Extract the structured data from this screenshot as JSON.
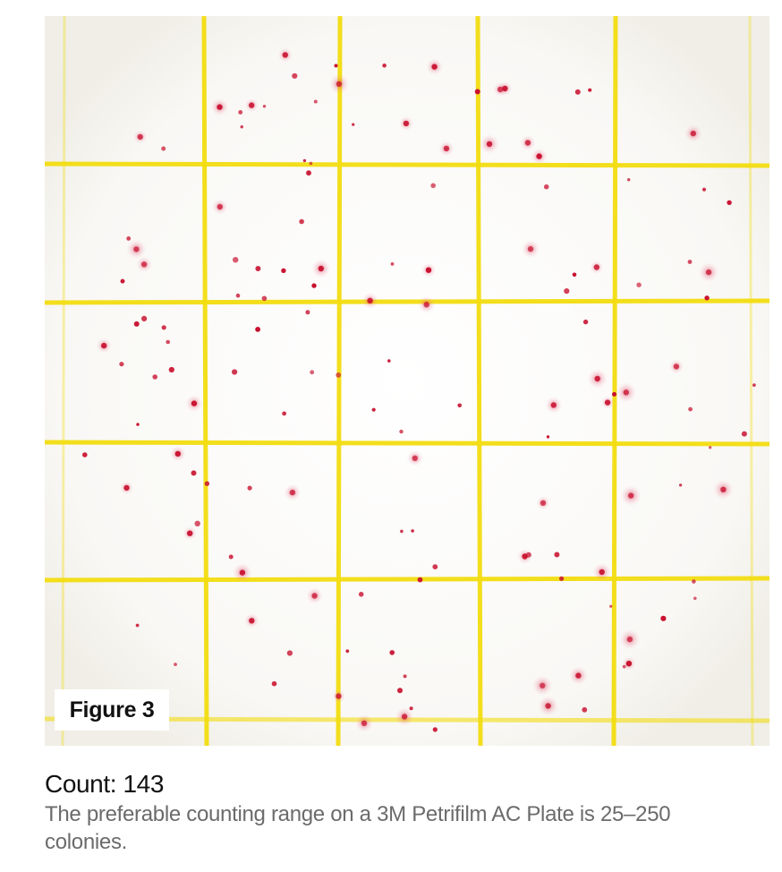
{
  "colors": {
    "grid_line": "#f2dc10",
    "plate_background": "#f7f6f3",
    "colony": "#c8102e",
    "caption_title": "#111111",
    "caption_text": "#6b6b6b"
  },
  "plate": {
    "figure_label": "Figure 3",
    "colony_count": 143
  },
  "caption": {
    "count_label": "Count:",
    "count_value": "143",
    "description": "The preferable counting range on a 3M Petrifilm AC Plate is 25–250 colonies."
  }
}
